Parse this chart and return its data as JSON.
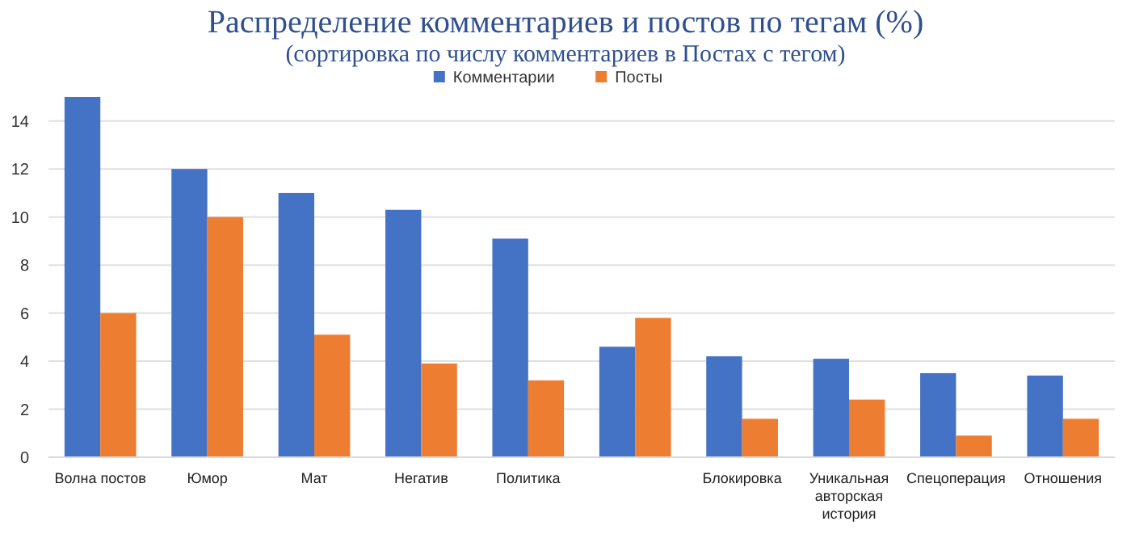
{
  "chart_data": {
    "type": "bar",
    "title": "Распределение комментариев и постов по тегам (%)",
    "subtitle": "(сортировка по числу комментариев в Постах с тегом)",
    "categories": [
      "Волна постов",
      "Юмор",
      "Мат",
      "Негатив",
      "Политика",
      null,
      "Блокировка",
      "Уникальная авторская история",
      "Спецоперация",
      "Отношения"
    ],
    "series": [
      {
        "name": "Комментарии",
        "color": "#4472c4",
        "values": [
          15.0,
          12.0,
          11.0,
          10.3,
          9.1,
          4.6,
          4.2,
          4.1,
          3.5,
          3.4
        ]
      },
      {
        "name": "Посты",
        "color": "#ed7d31",
        "values": [
          6.0,
          10.0,
          5.1,
          3.9,
          3.2,
          5.8,
          1.6,
          2.4,
          0.9,
          1.6
        ]
      }
    ],
    "ylim": [
      0,
      15
    ],
    "yticks": [
      0,
      2,
      4,
      6,
      8,
      10,
      12,
      14
    ],
    "grid": "y",
    "legend": "top"
  }
}
